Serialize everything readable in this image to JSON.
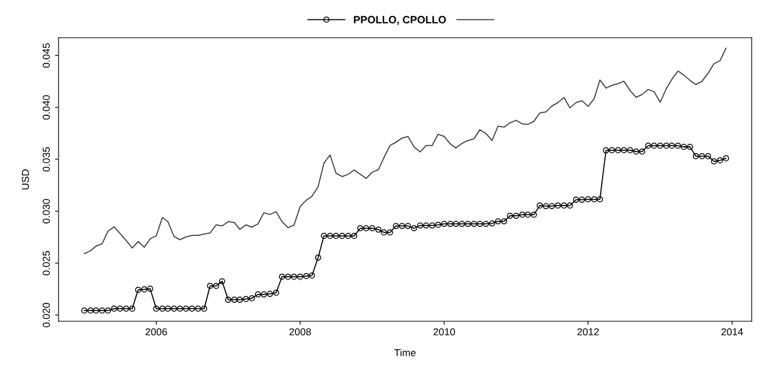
{
  "chart_data": {
    "type": "line",
    "xlabel": "Time",
    "ylabel": "USD",
    "x": [
      "2005-01",
      "2005-02",
      "2005-03",
      "2005-04",
      "2005-05",
      "2005-06",
      "2005-07",
      "2005-08",
      "2005-09",
      "2005-10",
      "2005-11",
      "2005-12",
      "2006-01",
      "2006-02",
      "2006-03",
      "2006-04",
      "2006-05",
      "2006-06",
      "2006-07",
      "2006-08",
      "2006-09",
      "2006-10",
      "2006-11",
      "2006-12",
      "2007-01",
      "2007-02",
      "2007-03",
      "2007-04",
      "2007-05",
      "2007-06",
      "2007-07",
      "2007-08",
      "2007-09",
      "2007-10",
      "2007-11",
      "2007-12",
      "2008-01",
      "2008-02",
      "2008-03",
      "2008-04",
      "2008-05",
      "2008-06",
      "2008-07",
      "2008-08",
      "2008-09",
      "2008-10",
      "2008-11",
      "2008-12",
      "2009-01",
      "2009-02",
      "2009-03",
      "2009-04",
      "2009-05",
      "2009-06",
      "2009-07",
      "2009-08",
      "2009-09",
      "2009-10",
      "2009-11",
      "2009-12",
      "2010-01",
      "2010-02",
      "2010-03",
      "2010-04",
      "2010-05",
      "2010-06",
      "2010-07",
      "2010-08",
      "2010-09",
      "2010-10",
      "2010-11",
      "2010-12",
      "2011-01",
      "2011-02",
      "2011-03",
      "2011-04",
      "2011-05",
      "2011-06",
      "2011-07",
      "2011-08",
      "2011-09",
      "2011-10",
      "2011-11",
      "2011-12",
      "2012-01",
      "2012-02",
      "2012-03",
      "2012-04",
      "2012-05",
      "2012-06",
      "2012-07",
      "2012-08",
      "2012-09",
      "2012-10",
      "2012-11",
      "2012-12",
      "2013-01",
      "2013-02",
      "2013-03",
      "2013-04",
      "2013-05",
      "2013-06",
      "2013-07",
      "2013-08",
      "2013-09",
      "2013-10",
      "2013-11",
      "2013-12"
    ],
    "series": [
      {
        "name": "PPOLLO, CPOLLO",
        "color": "#000000",
        "marker": "circle",
        "values": [
          0.02044,
          0.02044,
          0.02044,
          0.02044,
          0.02044,
          0.02062,
          0.02062,
          0.02062,
          0.02062,
          0.02243,
          0.02248,
          0.02254,
          0.02062,
          0.02062,
          0.02062,
          0.02062,
          0.02062,
          0.02062,
          0.02062,
          0.02062,
          0.02062,
          0.02281,
          0.02281,
          0.02325,
          0.02148,
          0.02148,
          0.02148,
          0.02155,
          0.02162,
          0.02199,
          0.02199,
          0.02204,
          0.02215,
          0.02369,
          0.02369,
          0.02369,
          0.02369,
          0.02376,
          0.02381,
          0.02553,
          0.02763,
          0.02763,
          0.02763,
          0.02763,
          0.02763,
          0.02763,
          0.02836,
          0.02836,
          0.02836,
          0.02823,
          0.02796,
          0.02796,
          0.02858,
          0.02858,
          0.02858,
          0.02836,
          0.02863,
          0.02863,
          0.02863,
          0.02869,
          0.02878,
          0.02878,
          0.02878,
          0.02878,
          0.02878,
          0.02878,
          0.02878,
          0.02878,
          0.02883,
          0.02903,
          0.02903,
          0.02956,
          0.02956,
          0.02967,
          0.02967,
          0.02967,
          0.03055,
          0.03049,
          0.03049,
          0.03055,
          0.03055,
          0.03055,
          0.03111,
          0.03111,
          0.03115,
          0.03115,
          0.03115,
          0.03586,
          0.03588,
          0.03588,
          0.03588,
          0.03588,
          0.03575,
          0.03575,
          0.03631,
          0.03631,
          0.03631,
          0.03631,
          0.03631,
          0.03631,
          0.0362,
          0.0362,
          0.0353,
          0.0353,
          0.0353,
          0.0348,
          0.0349,
          0.0351
        ]
      },
      {
        "color": "#3c3c3c",
        "marker": "none",
        "values": [
          0.02591,
          0.02619,
          0.02664,
          0.02686,
          0.02808,
          0.0285,
          0.02785,
          0.02719,
          0.02646,
          0.02708,
          0.02653,
          0.02735,
          0.02763,
          0.0294,
          0.029,
          0.02757,
          0.02726,
          0.02752,
          0.02768,
          0.02768,
          0.02781,
          0.0279,
          0.02869,
          0.02858,
          0.029,
          0.02892,
          0.02825,
          0.02869,
          0.02847,
          0.02878,
          0.02985,
          0.02969,
          0.02996,
          0.029,
          0.02841,
          0.02867,
          0.03044,
          0.03106,
          0.03144,
          0.03235,
          0.03465,
          0.03542,
          0.03367,
          0.03334,
          0.03356,
          0.03398,
          0.03356,
          0.03316,
          0.03376,
          0.034,
          0.03515,
          0.03633,
          0.03664,
          0.03704,
          0.03719,
          0.0362,
          0.03571,
          0.03633,
          0.03633,
          0.03741,
          0.03721,
          0.03648,
          0.03608,
          0.03653,
          0.03681,
          0.03697,
          0.03785,
          0.03748,
          0.03681,
          0.03819,
          0.0381,
          0.03852,
          0.03876,
          0.03841,
          0.03836,
          0.03865,
          0.03947,
          0.03956,
          0.04013,
          0.04046,
          0.04095,
          0.03996,
          0.04046,
          0.04064,
          0.04009,
          0.04084,
          0.04263,
          0.04186,
          0.04212,
          0.04228,
          0.04252,
          0.04162,
          0.04097,
          0.04124,
          0.04173,
          0.0415,
          0.04051,
          0.04179,
          0.0427,
          0.0435,
          0.0431,
          0.0426,
          0.0422,
          0.0425,
          0.0433,
          0.0442,
          0.0445,
          0.0457
        ]
      }
    ],
    "xlim": [
      "2004-08-23",
      "2014-04-10"
    ],
    "xticks": [
      "2006",
      "2008",
      "2010",
      "2012",
      "2014"
    ],
    "ylim": [
      0.0194,
      0.0467
    ],
    "yticks": [
      {
        "value": 0.02,
        "label": "0.020"
      },
      0.025,
      {
        "value": 0.03,
        "label": "0.030"
      },
      0.035,
      {
        "value": 0.04,
        "label": "0.040"
      },
      0.045
    ],
    "grid": false,
    "legend": "top",
    "line_style": "solid"
  }
}
